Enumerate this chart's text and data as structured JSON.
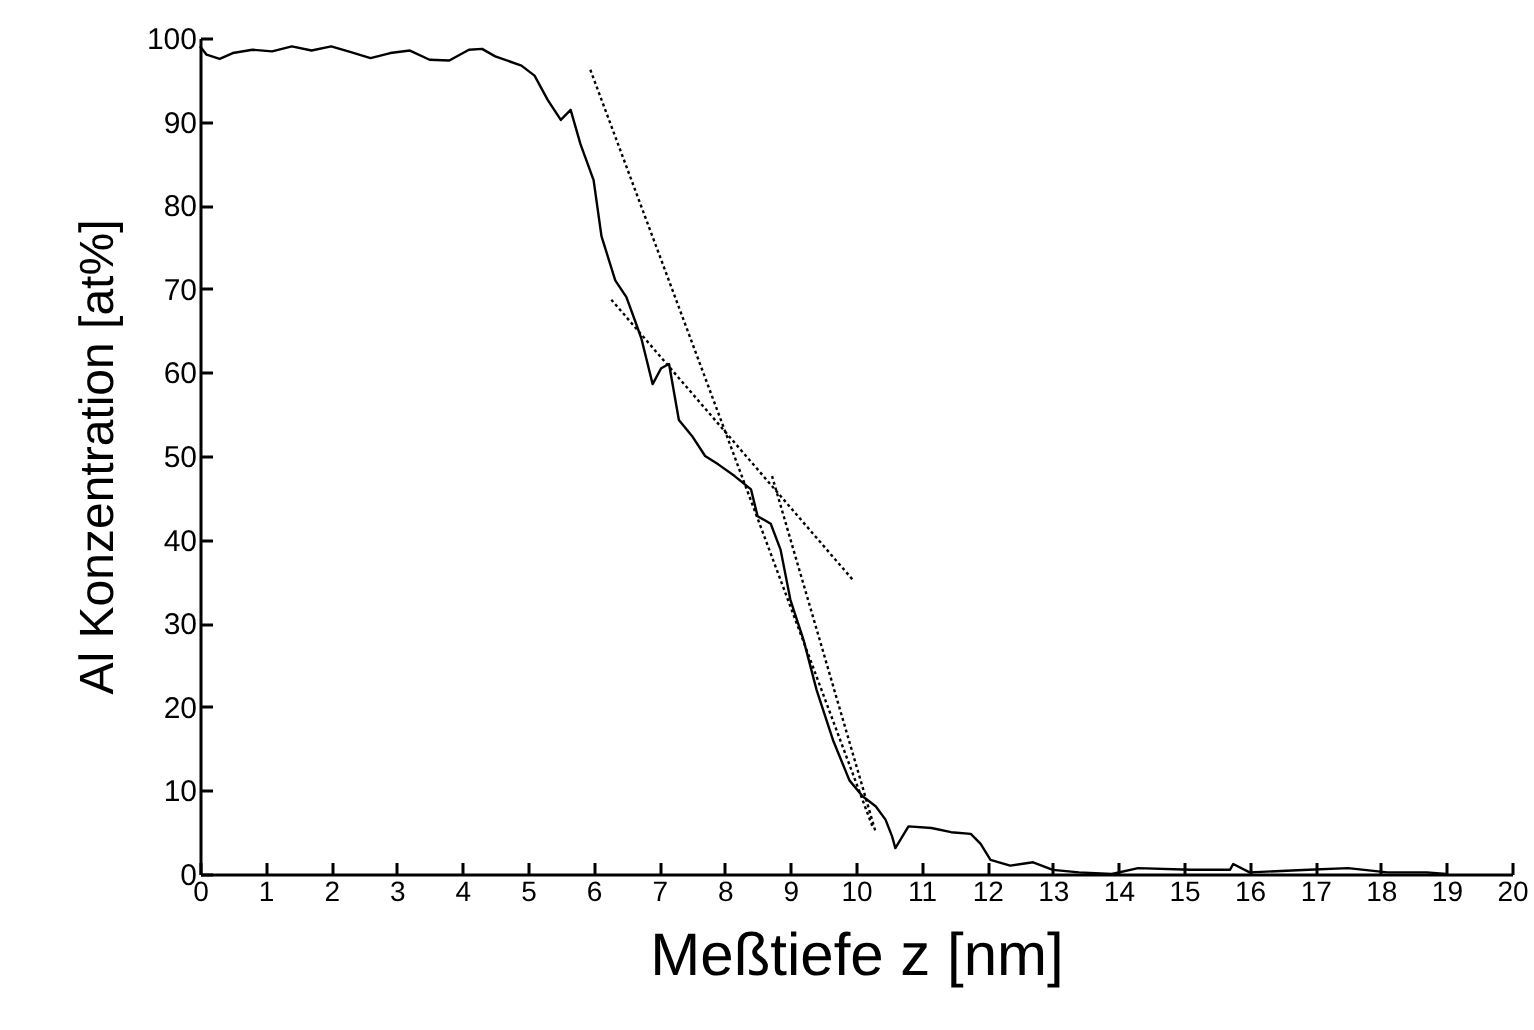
{
  "chart_data": {
    "type": "line",
    "xlabel": "Meßtiefe z [nm]",
    "ylabel": "Al Konzentration [at%]",
    "xlim": [
      0,
      20
    ],
    "ylim": [
      0,
      100
    ],
    "xticks": [
      0,
      1,
      2,
      3,
      4,
      5,
      6,
      7,
      8,
      9,
      10,
      11,
      12,
      13,
      14,
      15,
      16,
      17,
      18,
      19,
      20
    ],
    "yticks": [
      0,
      10,
      20,
      30,
      40,
      50,
      60,
      70,
      80,
      90,
      100
    ],
    "grid": false,
    "marker": "none",
    "series": [
      {
        "color": "#000000",
        "line_style": "solid",
        "x": [
          0,
          0.1,
          0.3,
          0.5,
          0.8,
          1.1,
          1.4,
          1.7,
          2.0,
          2.3,
          2.6,
          2.9,
          3.2,
          3.5,
          3.8,
          4.1,
          4.3,
          4.5,
          4.9,
          5.1,
          5.3,
          5.5,
          5.65,
          5.8,
          6.0,
          6.12,
          6.33,
          6.5,
          6.64,
          6.73,
          6.9,
          7.03,
          7.15,
          7.3,
          7.5,
          7.7,
          7.9,
          8.15,
          8.4,
          8.5,
          8.7,
          8.85,
          9.0,
          9.2,
          9.4,
          9.65,
          9.9,
          10.1,
          10.3,
          10.45,
          10.55,
          10.6,
          10.8,
          11.15,
          11.45,
          11.75,
          11.9,
          12.05,
          12.35,
          12.7,
          13.0,
          13.4,
          13.9,
          14.3,
          15.1,
          15.7,
          15.75,
          16.0,
          16.9,
          17.5,
          18.1,
          18.7,
          19.0
        ],
        "values": [
          99,
          98,
          97.5,
          98.2,
          98.6,
          98.4,
          99,
          98.5,
          99,
          98.3,
          97.6,
          98.2,
          98.5,
          97.4,
          97.3,
          98.6,
          98.7,
          97.8,
          96.7,
          95.5,
          92.6,
          90.2,
          91.4,
          87.3,
          83,
          76.3,
          71,
          69,
          66,
          64,
          58.6,
          60.5,
          61,
          54.3,
          52.4,
          50,
          49,
          47.6,
          46,
          42.8,
          41.9,
          38.8,
          32.8,
          28,
          22,
          16,
          11.2,
          9.3,
          8.1,
          6.5,
          4.5,
          3.1,
          5.7,
          5.5,
          5,
          4.8,
          3.6,
          1.7,
          1,
          1.4,
          0.5,
          0.2,
          0,
          0.7,
          0.5,
          0.5,
          1.2,
          0.2,
          0.5,
          0.7,
          0.2,
          0.2,
          0
        ]
      },
      {
        "color": "#000000",
        "line_style": "dotted",
        "x": [
          5.95,
          10.25
        ],
        "values": [
          96.2,
          5.7
        ]
      },
      {
        "color": "#000000",
        "line_style": "dotted",
        "x": [
          6.27,
          9.95
        ],
        "values": [
          68.7,
          35.2
        ]
      },
      {
        "color": "#000000",
        "line_style": "dotted",
        "x": [
          8.72,
          10.3
        ],
        "values": [
          47.6,
          5
        ]
      }
    ]
  }
}
